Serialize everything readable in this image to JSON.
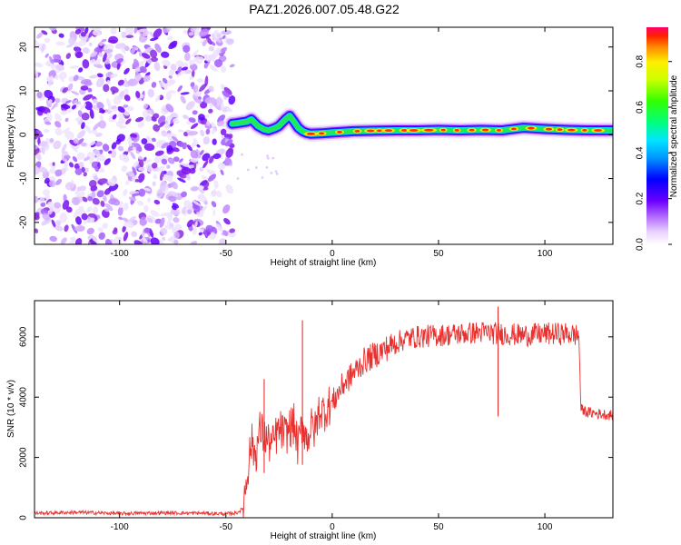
{
  "title": "PAZ1.2026.007.05.48.G22",
  "chart_data": [
    {
      "type": "heatmap",
      "name": "spectrogram",
      "xlabel": "Height of straight line (km)",
      "ylabel": "Frequency (Hz)",
      "xlim": [
        -140,
        132
      ],
      "ylim": [
        -25,
        24.5
      ],
      "xticks": [
        -100,
        -50,
        0,
        50,
        100
      ],
      "xtick_labels": [
        "-100",
        "-50",
        "0",
        "50",
        "100"
      ],
      "yticks": [
        -20,
        -10,
        0,
        10,
        20
      ],
      "ytick_labels": [
        "-20",
        "-10",
        "0",
        "10",
        "20"
      ],
      "colorbar": {
        "label": "Normalized spectral amplitude",
        "range": [
          0,
          0.95
        ],
        "ticks": [
          0,
          0.2,
          0.4,
          0.6,
          0.8
        ],
        "tick_labels": [
          "0.0",
          "0.2",
          "0.4",
          "0.6",
          "0.8"
        ]
      },
      "noise_region_x": [
        -140,
        -47
      ],
      "signal_line": {
        "x": [
          -47,
          -45,
          -40,
          -38,
          -35,
          -32,
          -30,
          -27,
          -25,
          -22,
          -20,
          -18,
          -16,
          -14,
          -12,
          -10,
          -5,
          0,
          10,
          20,
          30,
          40,
          50,
          60,
          70,
          80,
          90,
          100,
          110,
          120,
          132
        ],
        "freq_hz": [
          2.5,
          2.6,
          3.0,
          3.5,
          2.0,
          1.2,
          1.0,
          1.5,
          2.0,
          3.5,
          4.3,
          3.0,
          1.6,
          0.8,
          0.4,
          0.2,
          0.3,
          0.5,
          0.8,
          0.9,
          1.0,
          1.0,
          1.1,
          1.0,
          1.1,
          1.0,
          1.6,
          1.3,
          1.1,
          1.0,
          1.0
        ]
      }
    },
    {
      "type": "line",
      "name": "snr",
      "xlabel": "Height of straight line (km)",
      "ylabel": "SNR (10 * v/v)",
      "xlim": [
        -140,
        132
      ],
      "ylim": [
        0,
        7200
      ],
      "xticks": [
        -100,
        -50,
        0,
        50,
        100
      ],
      "xtick_labels": [
        "-100",
        "-50",
        "0",
        "50",
        "100"
      ],
      "yticks": [
        0,
        2000,
        4000,
        6000
      ],
      "ytick_labels": [
        "0",
        "2000",
        "4000",
        "6000"
      ],
      "color": "#e8312f",
      "x": [
        -140,
        -120,
        -100,
        -80,
        -60,
        -50,
        -45,
        -42,
        -40,
        -38,
        -36,
        -34,
        -32,
        -30,
        -28,
        -26,
        -24,
        -22,
        -20,
        -18,
        -16,
        -14,
        -12,
        -10,
        -8,
        -6,
        -4,
        -2,
        0,
        5,
        10,
        15,
        20,
        25,
        30,
        35,
        40,
        50,
        60,
        70,
        80,
        90,
        100,
        110,
        116,
        117,
        120,
        125,
        132
      ],
      "y": [
        150,
        180,
        140,
        160,
        150,
        130,
        160,
        300,
        1500,
        2500,
        2100,
        2900,
        2700,
        2500,
        2400,
        2800,
        2900,
        2700,
        3000,
        3100,
        2300,
        3200,
        2600,
        3000,
        2900,
        3600,
        3500,
        3700,
        3800,
        4400,
        4800,
        5200,
        5400,
        5600,
        5800,
        5950,
        6000,
        6050,
        6100,
        6150,
        6100,
        6050,
        6100,
        6100,
        6050,
        3600,
        3500,
        3450,
        3400
      ],
      "spikes": [
        {
          "x": -32,
          "y": 4600
        },
        {
          "x": -14,
          "y": 6550
        },
        {
          "x": 78,
          "y": 7000
        }
      ]
    }
  ]
}
